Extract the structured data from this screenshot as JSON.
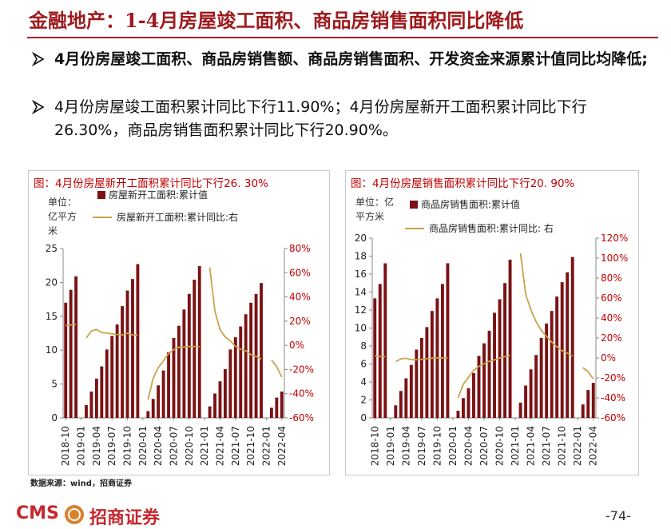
{
  "header": {
    "title": "金融地产：1-4月房屋竣工面积、商品房销售面积同比降低"
  },
  "bullets": [
    "4月份房屋竣工面积、商品房销售额、商品房销售面积、开发资金来源累计值同比均降低;",
    "4月份房屋竣工面积累计同比下行11.90%；4月份房屋新开工面积累计同比下行26.30%，商品房销售面积累计同比下行20.90%。"
  ],
  "chart_data": [
    {
      "type": "combo",
      "title": "图：4月份房屋新开工面积累计同比下行26. 30%",
      "unit": "单位：亿平方米",
      "categories": [
        "2018-10",
        null,
        null,
        "2019-01",
        null,
        null,
        "2019-04",
        null,
        null,
        "2019-07",
        null,
        null,
        "2019-10",
        null,
        null,
        "2020-01",
        null,
        null,
        "2020-04",
        null,
        null,
        "2020-07",
        null,
        null,
        "2020-10",
        null,
        null,
        "2021-01",
        null,
        null,
        "2021-04",
        null,
        null,
        "2021-07",
        null,
        null,
        "2021-10",
        null,
        null,
        "2022-01",
        null,
        null,
        "2022-04"
      ],
      "series": [
        {
          "name": "房屋新开工面积:累计值",
          "type": "bar",
          "color": "#7b1113",
          "values": [
            17.0,
            18.9,
            20.9,
            null,
            1.9,
            3.9,
            5.8,
            7.6,
            10.1,
            12.1,
            13.8,
            16.5,
            18.8,
            20.5,
            22.7,
            null,
            1.0,
            2.8,
            4.8,
            7.0,
            9.7,
            11.8,
            13.6,
            16.0,
            18.3,
            20.4,
            22.4,
            null,
            1.7,
            3.6,
            5.4,
            7.2,
            10.1,
            11.9,
            13.5,
            15.3,
            17.0,
            18.3,
            19.9,
            null,
            1.5,
            3.0,
            3.9
          ]
        },
        {
          "name": "房屋新开工面积:累计同比:右",
          "type": "line",
          "axis": "y2",
          "color": "#c8a44a",
          "values": [
            16.3,
            16.8,
            17.2,
            null,
            6.0,
            11.9,
            13.1,
            10.5,
            10.1,
            9.5,
            8.9,
            8.6,
            10.0,
            8.6,
            8.5,
            null,
            -44.9,
            -27.2,
            -18.4,
            -12.8,
            -6.9,
            -3.6,
            -1.6,
            -1.4,
            -0.9,
            -1.0,
            -1.2,
            null,
            64.3,
            28.2,
            12.8,
            6.9,
            3.8,
            -0.9,
            -3.2,
            -4.5,
            -7.7,
            -9.1,
            -11.4,
            null,
            -12.2,
            -17.5,
            -26.3
          ]
        }
      ],
      "ylim": [
        0,
        25
      ],
      "yticks": [
        0,
        5,
        10,
        15,
        20,
        25
      ],
      "y2lim": [
        -60,
        80
      ],
      "y2ticks": [
        {
          "value": -60,
          "label": "-60%"
        },
        {
          "value": -40,
          "label": "-40%"
        },
        {
          "value": -20,
          "label": "-20%"
        },
        {
          "value": 0,
          "label": "0%"
        },
        {
          "value": 20,
          "label": "20%"
        },
        {
          "value": 40,
          "label": "40%"
        },
        {
          "value": 60,
          "label": "60%"
        },
        {
          "value": 80,
          "label": "80%"
        }
      ]
    },
    {
      "type": "combo",
      "title": "图：4月份房屋销售面积累计同比下行20. 90%",
      "unit": "单位：亿平方米",
      "categories": [
        "2018-10",
        null,
        null,
        "2019-01",
        null,
        null,
        "2019-04",
        null,
        null,
        "2019-07",
        null,
        null,
        "2019-10",
        null,
        null,
        "2020-01",
        null,
        null,
        "2020-04",
        null,
        null,
        "2020-07",
        null,
        null,
        "2020-10",
        null,
        null,
        "2021-01",
        null,
        null,
        "2021-04",
        null,
        null,
        "2021-07",
        null,
        null,
        "2021-10",
        null,
        null,
        "2022-01",
        null,
        null,
        "2022-04"
      ],
      "series": [
        {
          "name": "商品房销售面积:累计值",
          "type": "bar",
          "color": "#7b1113",
          "values": [
            13.3,
            14.9,
            17.2,
            null,
            1.4,
            3.0,
            4.4,
            5.9,
            7.6,
            8.9,
            10.1,
            11.9,
            13.3,
            14.9,
            17.2,
            null,
            0.8,
            2.2,
            3.3,
            5.0,
            6.9,
            8.3,
            9.7,
            11.7,
            13.2,
            15.0,
            17.6,
            null,
            1.7,
            3.6,
            5.4,
            7.0,
            8.9,
            10.5,
            11.9,
            13.5,
            15.1,
            16.2,
            17.9,
            null,
            1.5,
            3.1,
            3.9
          ]
        },
        {
          "name": "商品房销售面积:累计同比: 右",
          "type": "line",
          "axis": "y2",
          "color": "#c8a44a",
          "values": [
            2.2,
            1.4,
            1.3,
            null,
            -3.6,
            -0.9,
            -0.3,
            -1.6,
            -1.8,
            -1.3,
            -0.6,
            -0.1,
            0.1,
            0.2,
            -0.1,
            null,
            -39.9,
            -26.3,
            -19.3,
            -12.3,
            -8.4,
            -5.8,
            -3.3,
            -1.8,
            0.0,
            1.3,
            2.6,
            null,
            104.9,
            63.8,
            48.1,
            36.3,
            27.7,
            21.5,
            15.9,
            11.3,
            7.2,
            4.8,
            1.9,
            null,
            -9.6,
            -13.8,
            -20.9
          ]
        }
      ],
      "ylim": [
        0,
        20
      ],
      "yticks": [
        0,
        2,
        4,
        6,
        8,
        10,
        12,
        14,
        16,
        18,
        20
      ],
      "y2lim": [
        -60,
        120
      ],
      "y2ticks": [
        {
          "value": -60,
          "label": "-60%"
        },
        {
          "value": -40,
          "label": "-40%"
        },
        {
          "value": -20,
          "label": "-20%"
        },
        {
          "value": 0,
          "label": "0%"
        },
        {
          "value": 20,
          "label": "20%"
        },
        {
          "value": 40,
          "label": "40%"
        },
        {
          "value": 60,
          "label": "60%"
        },
        {
          "value": 80,
          "label": "80%"
        },
        {
          "value": 100,
          "label": "100%"
        },
        {
          "value": 120,
          "label": "120%"
        }
      ]
    }
  ],
  "source": "数据来源：wind，招商证券",
  "footer": {
    "brand_en": "CMS",
    "brand_cn": "招商证券",
    "page": "-74-"
  }
}
